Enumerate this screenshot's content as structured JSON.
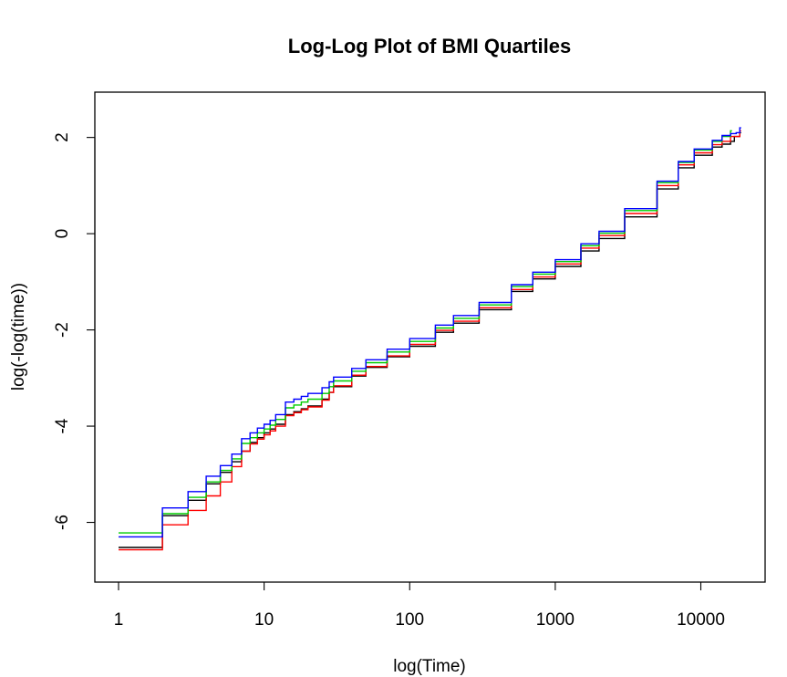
{
  "chart_data": {
    "type": "line",
    "step": true,
    "title": "Log-Log Plot of BMI Quartiles",
    "xlabel": "log(Time)",
    "ylabel": "log(-log(time))",
    "xscale": "log",
    "xlim": [
      1,
      19000
    ],
    "ylim": [
      -6.9,
      2.6
    ],
    "xticks": [
      1,
      10,
      100,
      1000,
      10000
    ],
    "xtick_labels": [
      "1",
      "10",
      "100",
      "1000",
      "10000"
    ],
    "yticks": [
      -6,
      -4,
      -2,
      0,
      2
    ],
    "ytick_labels": [
      "-6",
      "-4",
      "-2",
      "0",
      "2"
    ],
    "grid": false,
    "legend": "none",
    "series": [
      {
        "color": "#000000",
        "points": [
          [
            1,
            -6.52
          ],
          [
            2,
            -5.86
          ],
          [
            3,
            -5.54
          ],
          [
            4,
            -5.2
          ],
          [
            5,
            -4.96
          ],
          [
            6,
            -4.74
          ],
          [
            7,
            -4.52
          ],
          [
            8,
            -4.34
          ],
          [
            9,
            -4.24
          ],
          [
            10,
            -4.14
          ],
          [
            11,
            -4.06
          ],
          [
            12,
            -3.96
          ],
          [
            14,
            -3.76
          ],
          [
            16,
            -3.7
          ],
          [
            18,
            -3.64
          ],
          [
            20,
            -3.58
          ],
          [
            25,
            -3.44
          ],
          [
            28,
            -3.3
          ],
          [
            30,
            -3.18
          ],
          [
            40,
            -2.96
          ],
          [
            50,
            -2.78
          ],
          [
            70,
            -2.56
          ],
          [
            100,
            -2.34
          ],
          [
            150,
            -2.05
          ],
          [
            200,
            -1.86
          ],
          [
            300,
            -1.58
          ],
          [
            500,
            -1.2
          ],
          [
            700,
            -0.94
          ],
          [
            1000,
            -0.68
          ],
          [
            1500,
            -0.36
          ],
          [
            2000,
            -0.1
          ],
          [
            3000,
            0.35
          ],
          [
            5000,
            0.93
          ],
          [
            7000,
            1.37
          ],
          [
            9000,
            1.63
          ],
          [
            12000,
            1.8
          ],
          [
            14000,
            1.86
          ],
          [
            16000,
            1.92
          ],
          [
            17000,
            2.02
          ],
          [
            18500,
            2.1
          ]
        ]
      },
      {
        "color": "#ff0000",
        "points": [
          [
            1,
            -6.57
          ],
          [
            2,
            -6.05
          ],
          [
            3,
            -5.75
          ],
          [
            4,
            -5.45
          ],
          [
            5,
            -5.16
          ],
          [
            6,
            -4.84
          ],
          [
            7,
            -4.52
          ],
          [
            8,
            -4.37
          ],
          [
            9,
            -4.27
          ],
          [
            10,
            -4.18
          ],
          [
            11,
            -4.1
          ],
          [
            12,
            -4.0
          ],
          [
            14,
            -3.78
          ],
          [
            16,
            -3.72
          ],
          [
            18,
            -3.66
          ],
          [
            20,
            -3.6
          ],
          [
            25,
            -3.46
          ],
          [
            28,
            -3.3
          ],
          [
            30,
            -3.16
          ],
          [
            40,
            -2.94
          ],
          [
            50,
            -2.76
          ],
          [
            70,
            -2.54
          ],
          [
            100,
            -2.3
          ],
          [
            150,
            -2.01
          ],
          [
            200,
            -1.82
          ],
          [
            300,
            -1.54
          ],
          [
            500,
            -1.16
          ],
          [
            700,
            -0.9
          ],
          [
            1000,
            -0.63
          ],
          [
            1500,
            -0.3
          ],
          [
            2000,
            -0.04
          ],
          [
            3000,
            0.42
          ],
          [
            5000,
            1.0
          ],
          [
            7000,
            1.43
          ],
          [
            9000,
            1.68
          ],
          [
            12000,
            1.85
          ],
          [
            14000,
            1.92
          ],
          [
            16000,
            2.02
          ],
          [
            18500,
            2.14
          ]
        ]
      },
      {
        "color": "#00cc00",
        "points": [
          [
            1,
            -6.22
          ],
          [
            2,
            -5.82
          ],
          [
            3,
            -5.48
          ],
          [
            4,
            -5.16
          ],
          [
            5,
            -4.92
          ],
          [
            6,
            -4.68
          ],
          [
            7,
            -4.36
          ],
          [
            8,
            -4.24
          ],
          [
            9,
            -4.14
          ],
          [
            10,
            -4.06
          ],
          [
            11,
            -3.98
          ],
          [
            12,
            -3.86
          ],
          [
            14,
            -3.62
          ],
          [
            16,
            -3.56
          ],
          [
            18,
            -3.5
          ],
          [
            20,
            -3.44
          ],
          [
            25,
            -3.32
          ],
          [
            28,
            -3.18
          ],
          [
            30,
            -3.06
          ],
          [
            40,
            -2.86
          ],
          [
            50,
            -2.68
          ],
          [
            70,
            -2.46
          ],
          [
            100,
            -2.24
          ],
          [
            150,
            -1.96
          ],
          [
            200,
            -1.76
          ],
          [
            300,
            -1.48
          ],
          [
            500,
            -1.1
          ],
          [
            700,
            -0.84
          ],
          [
            1000,
            -0.58
          ],
          [
            1500,
            -0.25
          ],
          [
            2000,
            0.01
          ],
          [
            3000,
            0.48
          ],
          [
            5000,
            1.06
          ],
          [
            7000,
            1.48
          ],
          [
            9000,
            1.74
          ],
          [
            12000,
            1.92
          ],
          [
            14000,
            2.02
          ],
          [
            16000,
            2.14
          ]
        ]
      },
      {
        "color": "#0000ff",
        "points": [
          [
            1,
            -6.3
          ],
          [
            2,
            -5.7
          ],
          [
            3,
            -5.36
          ],
          [
            4,
            -5.04
          ],
          [
            5,
            -4.82
          ],
          [
            6,
            -4.58
          ],
          [
            7,
            -4.26
          ],
          [
            8,
            -4.14
          ],
          [
            9,
            -4.04
          ],
          [
            10,
            -3.96
          ],
          [
            11,
            -3.88
          ],
          [
            12,
            -3.76
          ],
          [
            14,
            -3.5
          ],
          [
            16,
            -3.44
          ],
          [
            18,
            -3.38
          ],
          [
            20,
            -3.32
          ],
          [
            25,
            -3.2
          ],
          [
            28,
            -3.08
          ],
          [
            30,
            -2.98
          ],
          [
            40,
            -2.8
          ],
          [
            50,
            -2.62
          ],
          [
            70,
            -2.4
          ],
          [
            100,
            -2.18
          ],
          [
            150,
            -1.9
          ],
          [
            200,
            -1.7
          ],
          [
            300,
            -1.43
          ],
          [
            500,
            -1.06
          ],
          [
            700,
            -0.8
          ],
          [
            1000,
            -0.54
          ],
          [
            1500,
            -0.21
          ],
          [
            2000,
            0.05
          ],
          [
            3000,
            0.52
          ],
          [
            5000,
            1.09
          ],
          [
            7000,
            1.5
          ],
          [
            9000,
            1.76
          ],
          [
            12000,
            1.94
          ],
          [
            14000,
            2.04
          ],
          [
            16000,
            2.08
          ],
          [
            17500,
            2.1
          ],
          [
            18500,
            2.2
          ]
        ]
      }
    ]
  }
}
